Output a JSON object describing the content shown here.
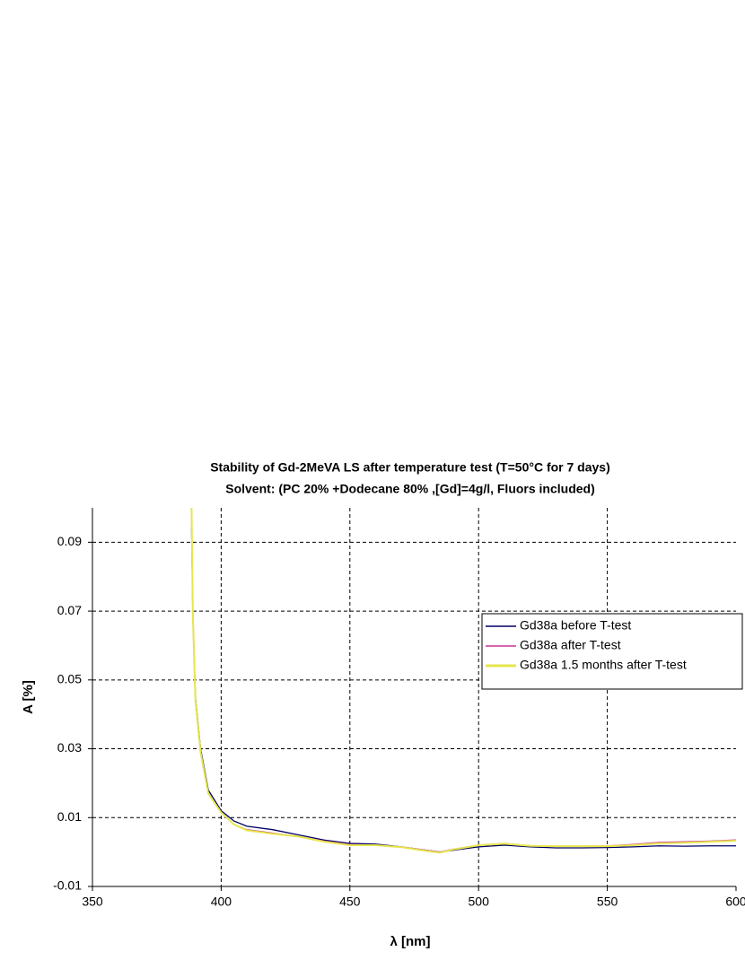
{
  "chart_data": {
    "type": "line",
    "title": "Stability of Gd-2MeVA LS after temperature test (T=50°C for 7 days)",
    "subtitle": "Solvent: (PC 20% +Dodecane 80% ,[Gd]=4g/l, Fluors included)",
    "x_label": "λ [nm]",
    "y_label": "A [%]",
    "x": [
      388.5,
      389,
      390,
      392,
      395,
      400,
      405,
      410,
      420,
      430,
      440,
      450,
      460,
      470,
      480,
      485,
      490,
      500,
      510,
      520,
      530,
      540,
      550,
      560,
      570,
      580,
      590,
      600
    ],
    "series": [
      {
        "name": "Gd38a before T-test",
        "color": "#000066",
        "values": [
          0.094,
          0.07,
          0.045,
          0.03,
          0.018,
          0.012,
          0.009,
          0.0075,
          0.0065,
          0.005,
          0.0035,
          0.0025,
          0.0023,
          0.0015,
          0.0005,
          0.0,
          0.0005,
          0.0015,
          0.002,
          0.0015,
          0.0012,
          0.0012,
          0.0013,
          0.0015,
          0.0018,
          0.0017,
          0.0018,
          0.0018
        ]
      },
      {
        "name": "Gd38a after T-test",
        "color": "#cc3399",
        "values": [
          0.097,
          0.068,
          0.044,
          0.029,
          0.017,
          0.0115,
          0.008,
          0.0065,
          0.0055,
          0.0045,
          0.0032,
          0.0022,
          0.002,
          0.0015,
          0.0005,
          0.0,
          0.0008,
          0.002,
          0.0025,
          0.0018,
          0.0017,
          0.0017,
          0.0018,
          0.0022,
          0.0028,
          0.003,
          0.0032,
          0.0035
        ]
      },
      {
        "name": "Gd38a 1.5 months after T-test",
        "color": "#e6e64d",
        "values": [
          0.1,
          0.069,
          0.044,
          0.029,
          0.017,
          0.0115,
          0.008,
          0.0063,
          0.0053,
          0.0045,
          0.003,
          0.002,
          0.002,
          0.0014,
          0.0003,
          -0.0002,
          0.0007,
          0.002,
          0.0024,
          0.0018,
          0.0017,
          0.0017,
          0.0017,
          0.002,
          0.0025,
          0.0027,
          0.003,
          0.0033
        ]
      }
    ],
    "xlim": [
      350,
      600
    ],
    "xticks": [
      350,
      400,
      450,
      500,
      550,
      600
    ],
    "ylim": [
      -0.01,
      0.1
    ],
    "yticks": [
      -0.01,
      0.01,
      0.03,
      0.05,
      0.07,
      0.09
    ],
    "grid": true,
    "legend_position": "right"
  }
}
